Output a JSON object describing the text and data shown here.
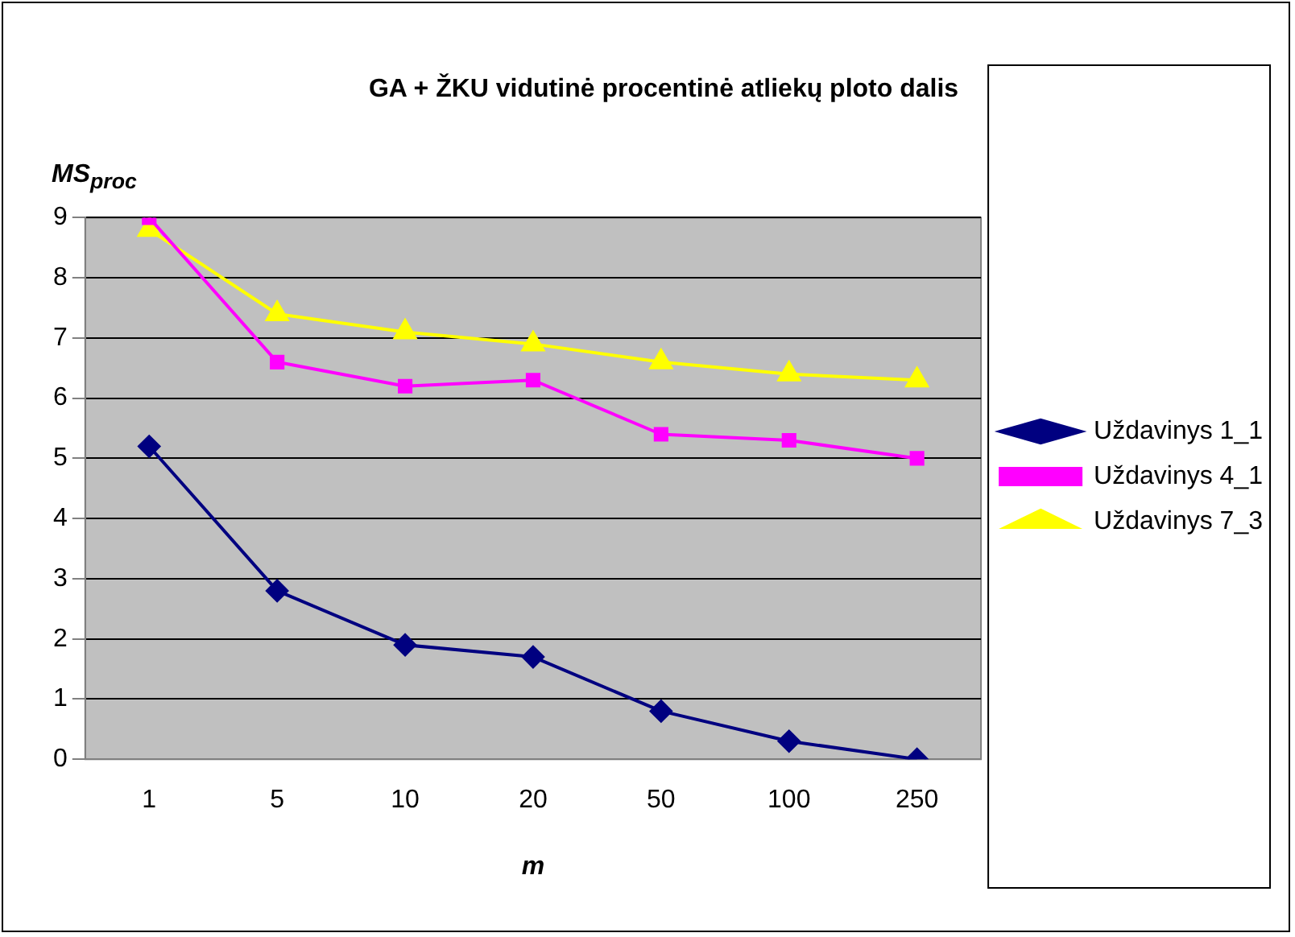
{
  "chart_data": {
    "type": "line",
    "title": "GA + ŽKU vidutinė procentinė atliekų ploto dalis",
    "xlabel": "m",
    "ylabel": "MS$_{proc}$",
    "categories": [
      "1",
      "5",
      "10",
      "20",
      "50",
      "100",
      "250"
    ],
    "series": [
      {
        "name": "Uždavinys 1_1",
        "color": "#000080",
        "marker": "diamond",
        "values": [
          5.2,
          2.8,
          1.9,
          1.7,
          0.8,
          0.3,
          0
        ]
      },
      {
        "name": "Uždavinys 4_1",
        "color": "#ff00ff",
        "marker": "square",
        "values": [
          9.0,
          6.6,
          6.2,
          6.3,
          5.4,
          5.3,
          5.0
        ]
      },
      {
        "name": "Uždavinys 7_3",
        "color": "#ffff00",
        "marker": "triangle",
        "values": [
          8.8,
          7.4,
          7.1,
          6.9,
          6.6,
          6.4,
          6.3
        ]
      }
    ],
    "ylim": [
      0,
      9
    ],
    "yticks": [
      0,
      1,
      2,
      3,
      4,
      5,
      6,
      7,
      8,
      9
    ],
    "grid": "y",
    "legend": "right"
  }
}
